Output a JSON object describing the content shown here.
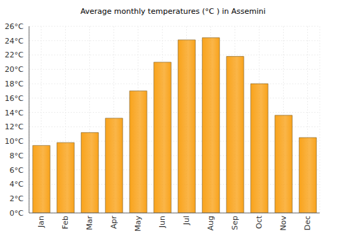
{
  "chart_data": {
    "type": "bar",
    "title": "Average monthly temperatures (°C ) in Assemini",
    "categories": [
      "Jan",
      "Feb",
      "Mar",
      "Apr",
      "May",
      "Jun",
      "Jul",
      "Aug",
      "Sep",
      "Oct",
      "Nov",
      "Dec"
    ],
    "values": [
      9.4,
      9.8,
      11.2,
      13.2,
      17.0,
      21.0,
      24.1,
      24.4,
      21.8,
      18.0,
      13.6,
      10.5
    ],
    "color": "#f9a31b",
    "ylim": [
      0,
      26
    ],
    "yticks": [
      {
        "value": 0,
        "label": "0°C"
      },
      {
        "value": 2,
        "label": "2°C"
      },
      {
        "value": 4,
        "label": "4°C"
      },
      {
        "value": 6,
        "label": "6°C"
      },
      {
        "value": 8,
        "label": "8°C"
      },
      {
        "value": 10,
        "label": "10°C"
      },
      {
        "value": 12,
        "label": "12°C"
      },
      {
        "value": 14,
        "label": "14°C"
      },
      {
        "value": 16,
        "label": "16°C"
      },
      {
        "value": 18,
        "label": "18°C"
      },
      {
        "value": 20,
        "label": "20°C"
      },
      {
        "value": 22,
        "label": "22°C"
      },
      {
        "value": 24,
        "label": "24°C"
      },
      {
        "value": 26,
        "label": "26°C"
      }
    ],
    "grid": true
  }
}
